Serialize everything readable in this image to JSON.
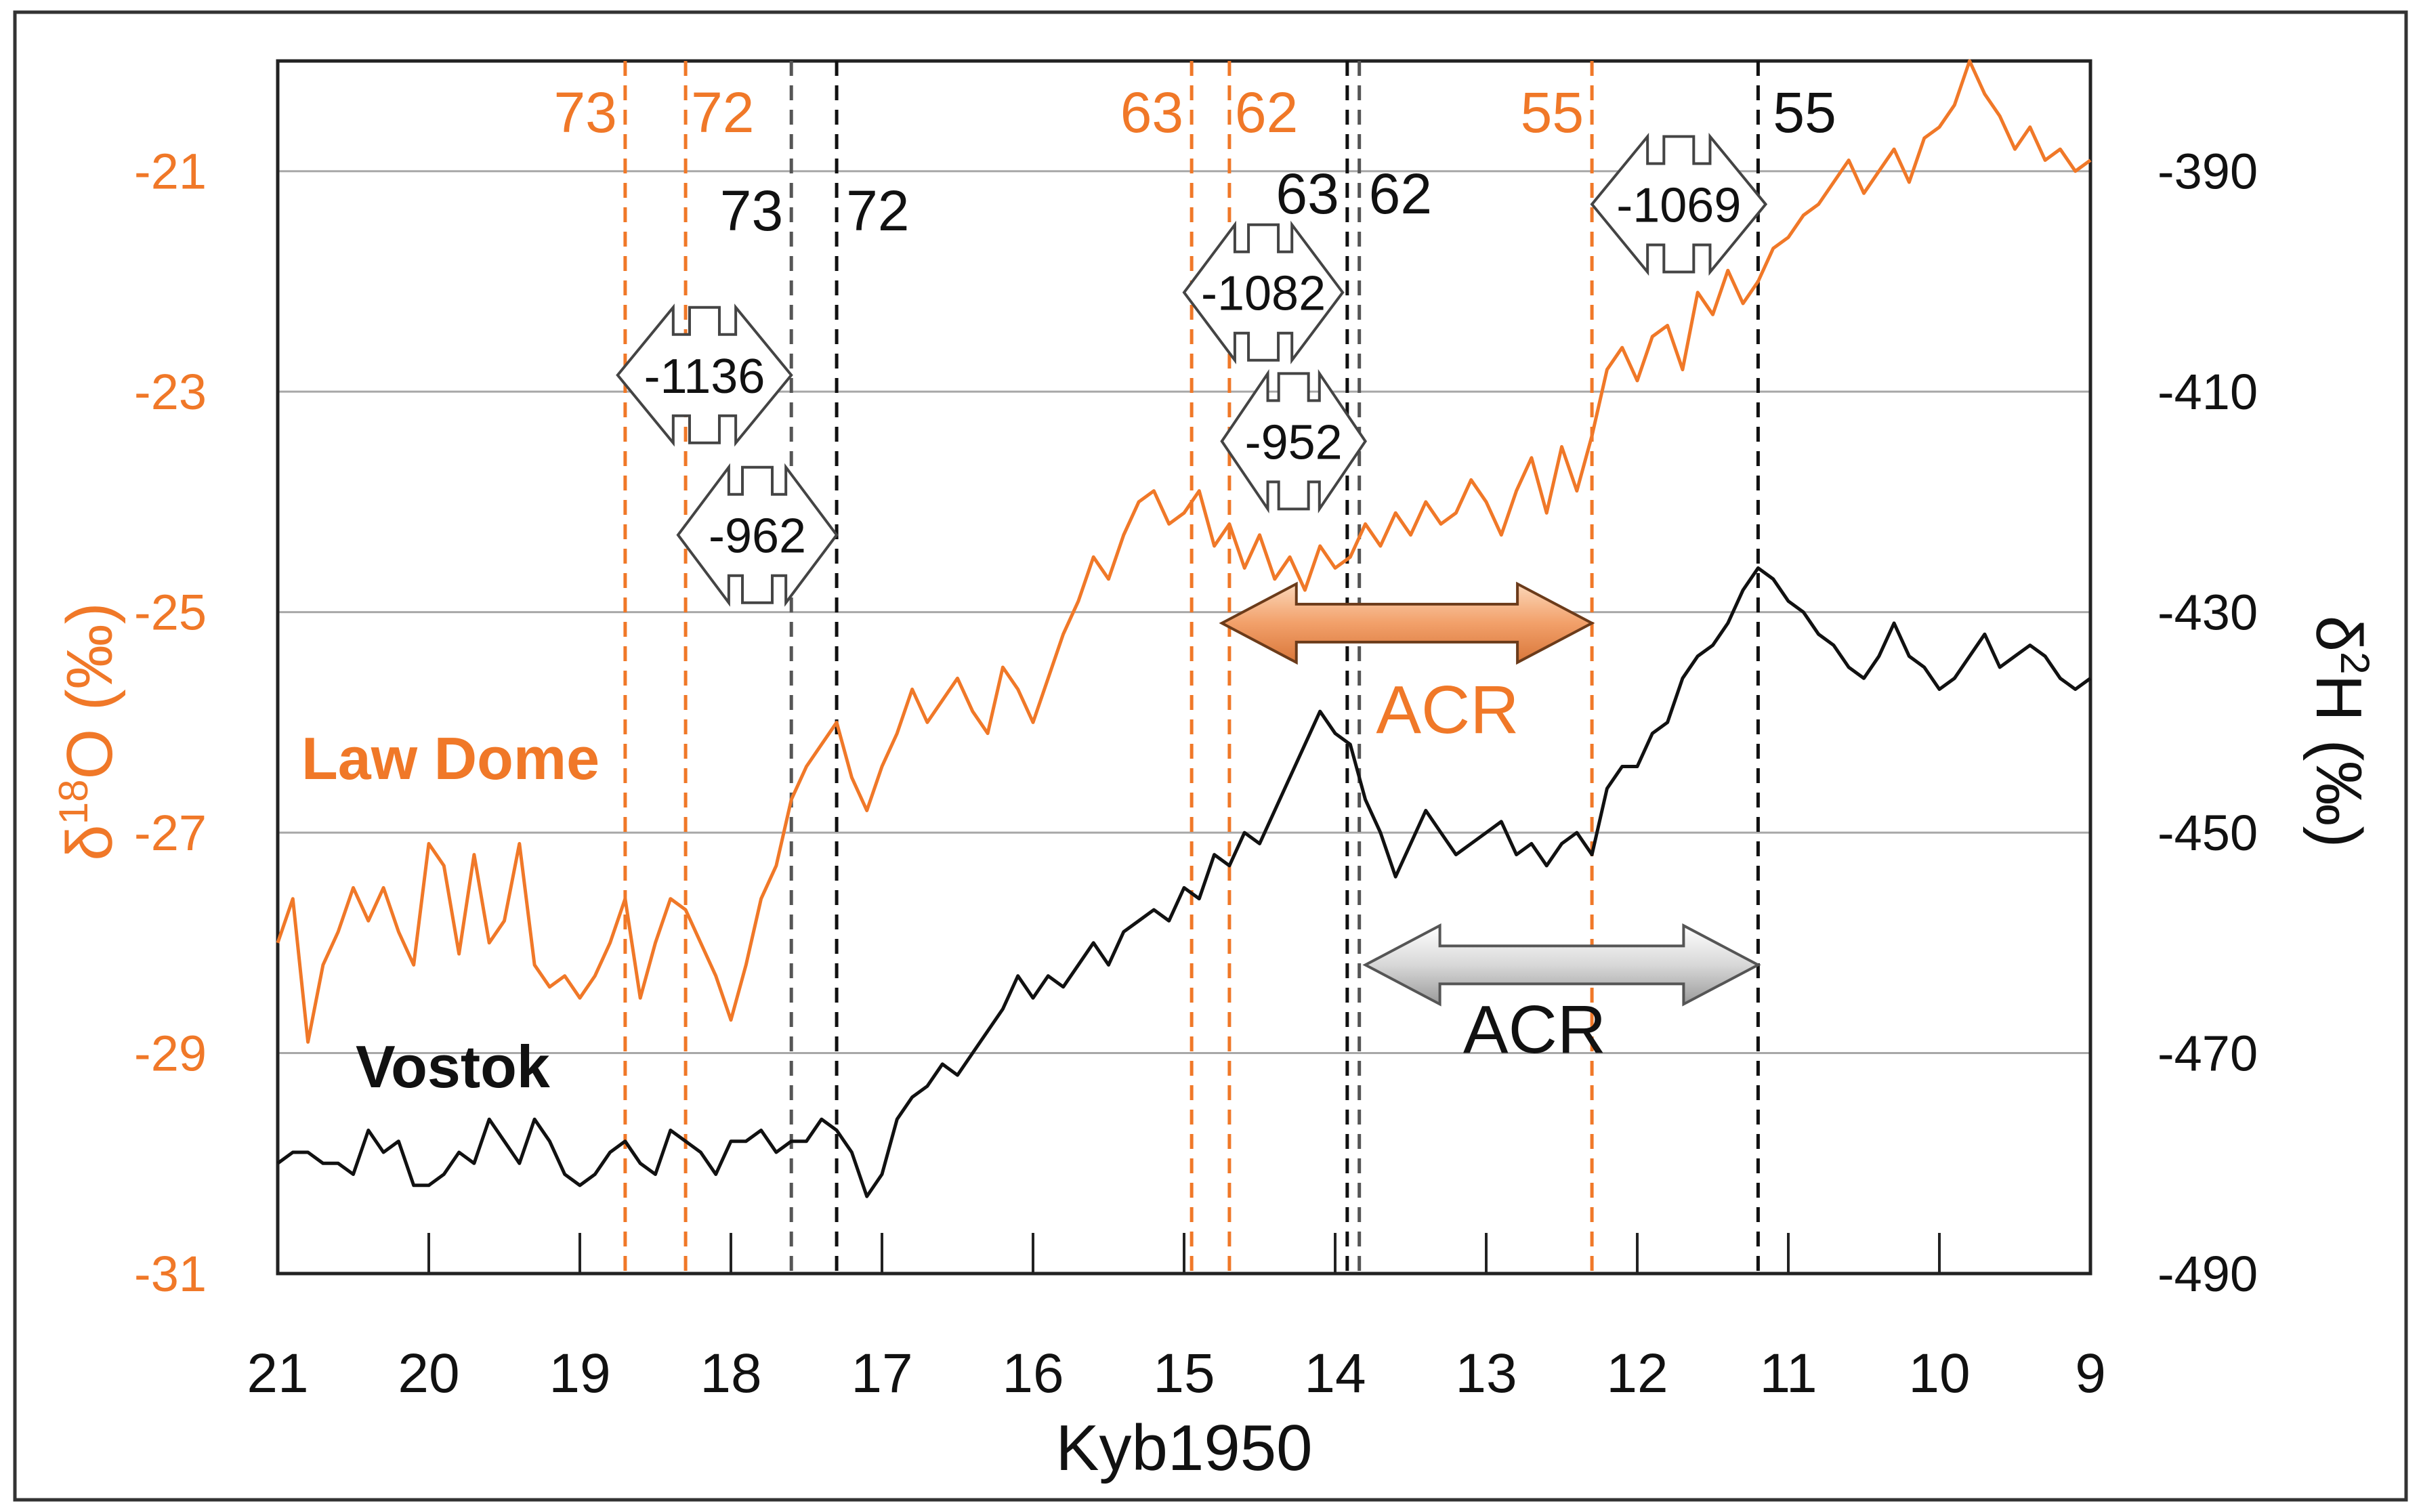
{
  "chart_data": {
    "type": "line",
    "xlabel": "Kyb1950",
    "xlim": [
      21,
      9
    ],
    "x_reversed": true,
    "x_ticks": [
      "21",
      "20",
      "19",
      "18",
      "17",
      "16",
      "15",
      "14",
      "13",
      "12",
      "11",
      "10",
      "9"
    ],
    "y_left": {
      "label_main": "δ",
      "label_sup": "18",
      "label_rest": "O  (‰)",
      "ylim": [
        -31,
        -20
      ],
      "ticks": [
        "-21",
        "-23",
        "-25",
        "-27",
        "-29",
        "-31"
      ],
      "color": "#f07828"
    },
    "y_right": {
      "label_main": "δ",
      "label_sup": "2",
      "label_rest": "H  (‰)",
      "ylim": [
        -490,
        -380
      ],
      "ticks": [
        "-390",
        "-410",
        "-430",
        "-450",
        "-470",
        "-490"
      ],
      "color": "#111111"
    },
    "grid": true,
    "series": [
      {
        "name": "Law Dome",
        "axis": "left",
        "color": "#f07828",
        "x": [
          21.0,
          20.9,
          20.8,
          20.7,
          20.6,
          20.5,
          20.4,
          20.3,
          20.2,
          20.1,
          20.0,
          19.9,
          19.8,
          19.7,
          19.6,
          19.5,
          19.4,
          19.3,
          19.2,
          19.1,
          19.0,
          18.9,
          18.8,
          18.7,
          18.6,
          18.5,
          18.4,
          18.3,
          18.2,
          18.1,
          18.0,
          17.9,
          17.8,
          17.7,
          17.6,
          17.5,
          17.4,
          17.3,
          17.2,
          17.1,
          17.0,
          16.9,
          16.8,
          16.7,
          16.6,
          16.5,
          16.4,
          16.3,
          16.2,
          16.1,
          16.0,
          15.9,
          15.8,
          15.7,
          15.6,
          15.5,
          15.4,
          15.3,
          15.2,
          15.1,
          15.0,
          14.9,
          14.8,
          14.7,
          14.6,
          14.5,
          14.4,
          14.3,
          14.2,
          14.1,
          14.0,
          13.9,
          13.8,
          13.7,
          13.6,
          13.5,
          13.4,
          13.3,
          13.2,
          13.1,
          13.0,
          12.9,
          12.8,
          12.7,
          12.6,
          12.5,
          12.4,
          12.3,
          12.2,
          12.1,
          12.0,
          11.9,
          11.8,
          11.7,
          11.6,
          11.5,
          11.4,
          11.3,
          11.2,
          11.1,
          11.0,
          10.9,
          10.8,
          10.7,
          10.6,
          10.5,
          10.4,
          10.3,
          10.2,
          10.1,
          10.0,
          9.9,
          9.8,
          9.7,
          9.6,
          9.5,
          9.4,
          9.3,
          9.2,
          9.1,
          9.0
        ],
        "y": [
          -28.0,
          -27.6,
          -28.9,
          -28.2,
          -27.9,
          -27.5,
          -27.8,
          -27.5,
          -27.9,
          -28.2,
          -27.1,
          -27.3,
          -28.1,
          -27.2,
          -28.0,
          -27.8,
          -27.1,
          -28.2,
          -28.4,
          -28.3,
          -28.5,
          -28.3,
          -28.0,
          -27.6,
          -28.5,
          -28.0,
          -27.6,
          -27.7,
          -28.0,
          -28.3,
          -28.7,
          -28.2,
          -27.6,
          -27.3,
          -26.7,
          -26.4,
          -26.2,
          -26.0,
          -26.5,
          -26.8,
          -26.4,
          -26.1,
          -25.7,
          -26.0,
          -25.8,
          -25.6,
          -25.9,
          -26.1,
          -25.5,
          -25.7,
          -26.0,
          -25.6,
          -25.2,
          -24.9,
          -24.5,
          -24.7,
          -24.3,
          -24.0,
          -23.9,
          -24.2,
          -24.1,
          -23.9,
          -24.4,
          -24.2,
          -24.6,
          -24.3,
          -24.7,
          -24.5,
          -24.8,
          -24.4,
          -24.6,
          -24.5,
          -24.2,
          -24.4,
          -24.1,
          -24.3,
          -24.0,
          -24.2,
          -24.1,
          -23.8,
          -24.0,
          -24.3,
          -23.9,
          -23.6,
          -24.1,
          -23.5,
          -23.9,
          -23.4,
          -22.8,
          -22.6,
          -22.9,
          -22.5,
          -22.4,
          -22.8,
          -22.1,
          -22.3,
          -21.9,
          -22.2,
          -22.0,
          -21.7,
          -21.6,
          -21.4,
          -21.3,
          -21.1,
          -20.9,
          -21.2,
          -21.0,
          -20.8,
          -21.1,
          -20.7,
          -20.6,
          -20.4,
          -20.0,
          -20.3,
          -20.5,
          -20.8,
          -20.6,
          -20.9,
          -20.8,
          -21.0,
          -20.9
        ],
        "label": "Law Dome"
      },
      {
        "name": "Vostok",
        "axis": "right",
        "color": "#111111",
        "x": [
          21.0,
          20.9,
          20.8,
          20.7,
          20.6,
          20.5,
          20.4,
          20.3,
          20.2,
          20.1,
          20.0,
          19.9,
          19.8,
          19.7,
          19.6,
          19.5,
          19.4,
          19.3,
          19.2,
          19.1,
          19.0,
          18.9,
          18.8,
          18.7,
          18.6,
          18.5,
          18.4,
          18.3,
          18.2,
          18.1,
          18.0,
          17.9,
          17.8,
          17.7,
          17.6,
          17.5,
          17.4,
          17.3,
          17.2,
          17.1,
          17.0,
          16.9,
          16.8,
          16.7,
          16.6,
          16.5,
          16.4,
          16.3,
          16.2,
          16.1,
          16.0,
          15.9,
          15.8,
          15.7,
          15.6,
          15.5,
          15.4,
          15.3,
          15.2,
          15.1,
          15.0,
          14.9,
          14.8,
          14.7,
          14.6,
          14.5,
          14.4,
          14.3,
          14.2,
          14.1,
          14.0,
          13.9,
          13.8,
          13.7,
          13.6,
          13.5,
          13.4,
          13.3,
          13.2,
          13.1,
          13.0,
          12.9,
          12.8,
          12.7,
          12.6,
          12.5,
          12.4,
          12.3,
          12.2,
          12.1,
          12.0,
          11.9,
          11.8,
          11.7,
          11.6,
          11.5,
          11.4,
          11.3,
          11.2,
          11.1,
          11.0,
          10.9,
          10.8,
          10.7,
          10.6,
          10.5,
          10.4,
          10.3,
          10.2,
          10.1,
          10.0,
          9.9,
          9.8,
          9.7,
          9.6,
          9.5,
          9.4,
          9.3,
          9.2,
          9.1,
          9.0
        ],
        "y": [
          -480,
          -479,
          -479,
          -480,
          -480,
          -481,
          -477,
          -479,
          -478,
          -482,
          -482,
          -481,
          -479,
          -480,
          -476,
          -478,
          -480,
          -476,
          -478,
          -481,
          -482,
          -481,
          -479,
          -478,
          -480,
          -481,
          -477,
          -478,
          -479,
          -481,
          -478,
          -478,
          -477,
          -479,
          -478,
          -478,
          -476,
          -477,
          -479,
          -483,
          -481,
          -476,
          -474,
          -473,
          -471,
          -472,
          -470,
          -468,
          -466,
          -463,
          -465,
          -463,
          -464,
          -462,
          -460,
          -462,
          -459,
          -458,
          -457,
          -458,
          -455,
          -456,
          -452,
          -453,
          -450,
          -451,
          -448,
          -445,
          -442,
          -439,
          -441,
          -442,
          -447,
          -450,
          -454,
          -451,
          -448,
          -450,
          -452,
          -451,
          -450,
          -449,
          -452,
          -451,
          -453,
          -451,
          -450,
          -452,
          -446,
          -444,
          -444,
          -441,
          -440,
          -436,
          -434,
          -433,
          -431,
          -428,
          -426,
          -427,
          -429,
          -430,
          -432,
          -433,
          -435,
          -436,
          -434,
          -431,
          -434,
          -435,
          -437,
          -436,
          -434,
          -432,
          -435,
          -434,
          -433,
          -434,
          -436,
          -437,
          -436
        ],
        "label": "Vostok"
      }
    ],
    "event_lines": [
      {
        "x": 18.7,
        "color": "#f07828",
        "label": "73"
      },
      {
        "x": 18.3,
        "color": "#f07828",
        "label": "72"
      },
      {
        "x": 14.95,
        "color": "#f07828",
        "label": "63"
      },
      {
        "x": 14.7,
        "color": "#f07828",
        "label": "62"
      },
      {
        "x": 12.3,
        "color": "#f07828",
        "label": "55"
      },
      {
        "x": 17.6,
        "color": "#555555",
        "label": "73"
      },
      {
        "x": 17.3,
        "color": "#111111",
        "label": "72"
      },
      {
        "x": 13.92,
        "color": "#111111",
        "label": "63"
      },
      {
        "x": 13.84,
        "color": "#555555",
        "label": "62"
      },
      {
        "x": 11.2,
        "color": "#111111",
        "label": "55"
      }
    ],
    "lag_arrows": [
      {
        "x1": 18.75,
        "x2": 17.6,
        "y": -22.85,
        "label": "-1136"
      },
      {
        "x1": 18.35,
        "x2": 17.3,
        "y": -24.3,
        "label": "-962"
      },
      {
        "x1": 15.0,
        "x2": 13.95,
        "y": -22.1,
        "label": "-1082"
      },
      {
        "x1": 14.75,
        "x2": 13.8,
        "y": -23.45,
        "label": "-952"
      },
      {
        "x1": 12.3,
        "x2": 11.15,
        "y": -21.3,
        "label": "-1069"
      }
    ],
    "acr_spans": [
      {
        "x1": 14.75,
        "x2": 12.3,
        "y": -25.1,
        "label": "ACR",
        "color": "#f07828",
        "fill": "#f2a876",
        "label_y": -25.9
      },
      {
        "x1": 13.8,
        "x2": 11.2,
        "y": -28.2,
        "label": "ACR",
        "color": "#111111",
        "fill": "#d0d0d0",
        "label_y": -28.8
      }
    ]
  }
}
